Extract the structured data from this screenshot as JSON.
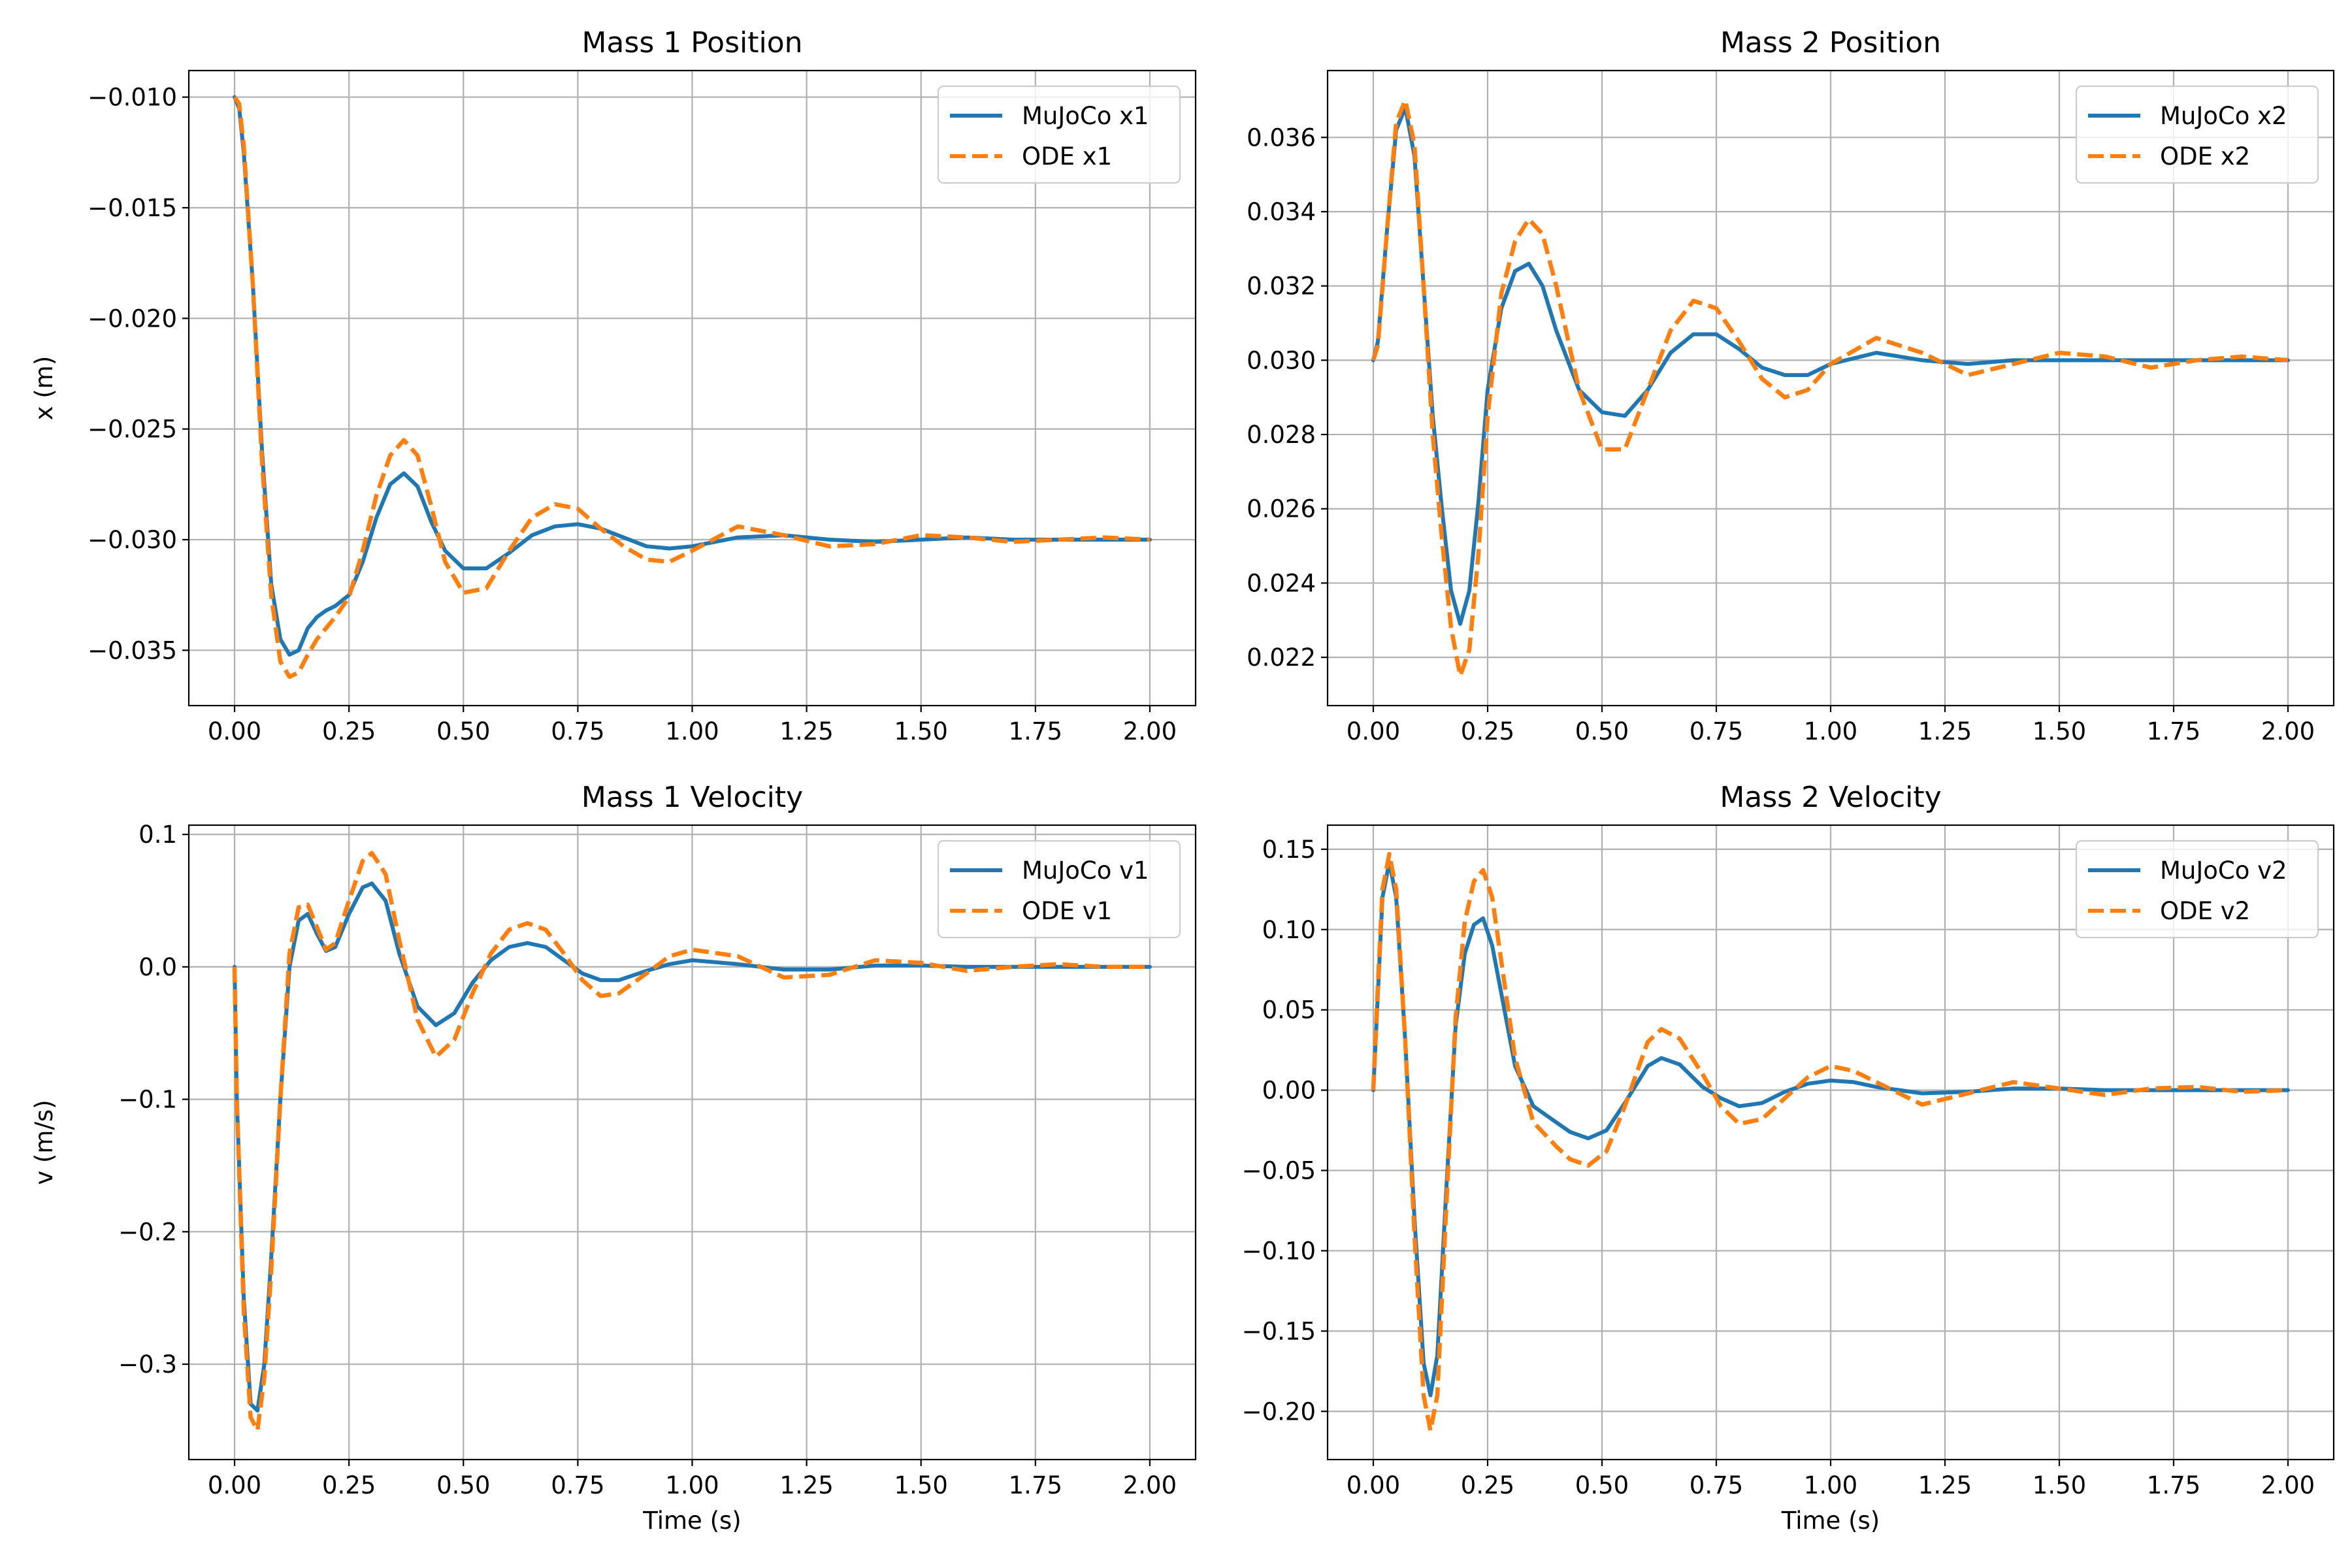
{
  "figure": {
    "title": ""
  },
  "colors": {
    "mujoco": "#1f77b4",
    "ode": "#ff7f0e",
    "grid": "#b0b0b0"
  },
  "chart_data": [
    {
      "type": "line",
      "title": "Mass 1 Position",
      "xlabel": "",
      "ylabel": "x (m)",
      "xlim": [
        -0.1,
        2.1
      ],
      "ylim": [
        -0.0375,
        -0.0088
      ],
      "xticks": [
        0,
        0.25,
        0.5,
        0.75,
        1.0,
        1.25,
        1.5,
        1.75,
        2.0
      ],
      "xtick_labels": [
        "0.00",
        "0.25",
        "0.50",
        "0.75",
        "1.00",
        "1.25",
        "1.50",
        "1.75",
        "2.00"
      ],
      "yticks": [
        -0.035,
        -0.03,
        -0.025,
        -0.02,
        -0.015,
        -0.01
      ],
      "ytick_labels": [
        "−0.035",
        "−0.030",
        "−0.025",
        "−0.020",
        "−0.015",
        "−0.010"
      ],
      "grid": true,
      "legend": "top-right",
      "series": [
        {
          "name": "MuJoCo x1",
          "style": "solid",
          "x": [
            0,
            0.01,
            0.02,
            0.04,
            0.06,
            0.08,
            0.1,
            0.12,
            0.14,
            0.16,
            0.18,
            0.2,
            0.22,
            0.25,
            0.28,
            0.31,
            0.34,
            0.37,
            0.4,
            0.43,
            0.46,
            0.5,
            0.55,
            0.6,
            0.65,
            0.7,
            0.75,
            0.8,
            0.85,
            0.9,
            0.95,
            1.0,
            1.1,
            1.2,
            1.3,
            1.4,
            1.5,
            1.6,
            1.7,
            1.8,
            1.9,
            2.0
          ],
          "y": [
            -0.01,
            -0.0105,
            -0.0125,
            -0.0185,
            -0.026,
            -0.032,
            -0.0345,
            -0.0352,
            -0.035,
            -0.034,
            -0.0335,
            -0.0332,
            -0.033,
            -0.0325,
            -0.031,
            -0.029,
            -0.0275,
            -0.027,
            -0.0276,
            -0.0292,
            -0.0305,
            -0.0313,
            -0.0313,
            -0.0306,
            -0.0298,
            -0.0294,
            -0.0293,
            -0.0295,
            -0.0299,
            -0.0303,
            -0.0304,
            -0.0303,
            -0.0299,
            -0.0298,
            -0.03,
            -0.0301,
            -0.03,
            -0.0299,
            -0.03,
            -0.03,
            -0.03,
            -0.03
          ]
        },
        {
          "name": "ODE x1",
          "style": "dashed",
          "x": [
            0,
            0.01,
            0.02,
            0.04,
            0.06,
            0.08,
            0.1,
            0.12,
            0.14,
            0.16,
            0.18,
            0.2,
            0.22,
            0.25,
            0.28,
            0.31,
            0.34,
            0.37,
            0.4,
            0.43,
            0.46,
            0.5,
            0.55,
            0.6,
            0.65,
            0.7,
            0.75,
            0.8,
            0.85,
            0.9,
            0.95,
            1.0,
            1.1,
            1.2,
            1.3,
            1.4,
            1.5,
            1.6,
            1.7,
            1.8,
            1.9,
            2.0
          ],
          "y": [
            -0.01,
            -0.0103,
            -0.0122,
            -0.0185,
            -0.0265,
            -0.0325,
            -0.0355,
            -0.0362,
            -0.036,
            -0.0352,
            -0.0345,
            -0.034,
            -0.0335,
            -0.0326,
            -0.0305,
            -0.028,
            -0.0262,
            -0.0255,
            -0.0262,
            -0.0285,
            -0.031,
            -0.0324,
            -0.0322,
            -0.0305,
            -0.029,
            -0.0284,
            -0.0286,
            -0.0295,
            -0.0303,
            -0.0309,
            -0.031,
            -0.0305,
            -0.0294,
            -0.0298,
            -0.0303,
            -0.0302,
            -0.0298,
            -0.0299,
            -0.0301,
            -0.03,
            -0.0299,
            -0.03
          ]
        }
      ]
    },
    {
      "type": "line",
      "title": "Mass 2 Position",
      "xlabel": "",
      "ylabel": "",
      "xlim": [
        -0.1,
        2.1
      ],
      "ylim": [
        0.0207,
        0.0378
      ],
      "xticks": [
        0,
        0.25,
        0.5,
        0.75,
        1.0,
        1.25,
        1.5,
        1.75,
        2.0
      ],
      "xtick_labels": [
        "0.00",
        "0.25",
        "0.50",
        "0.75",
        "1.00",
        "1.25",
        "1.50",
        "1.75",
        "2.00"
      ],
      "yticks": [
        0.022,
        0.024,
        0.026,
        0.028,
        0.03,
        0.032,
        0.034,
        0.036
      ],
      "ytick_labels": [
        "0.022",
        "0.024",
        "0.026",
        "0.028",
        "0.030",
        "0.032",
        "0.034",
        "0.036"
      ],
      "grid": true,
      "legend": "top-right",
      "series": [
        {
          "name": "MuJoCo x2",
          "style": "solid",
          "x": [
            0,
            0.01,
            0.03,
            0.05,
            0.07,
            0.09,
            0.11,
            0.13,
            0.15,
            0.17,
            0.19,
            0.21,
            0.23,
            0.25,
            0.28,
            0.31,
            0.34,
            0.37,
            0.4,
            0.45,
            0.5,
            0.55,
            0.6,
            0.65,
            0.7,
            0.75,
            0.8,
            0.85,
            0.9,
            0.95,
            1.0,
            1.1,
            1.2,
            1.3,
            1.4,
            1.5,
            1.6,
            1.7,
            1.8,
            1.9,
            2.0
          ],
          "y": [
            0.03,
            0.0305,
            0.0335,
            0.0362,
            0.0368,
            0.0355,
            0.032,
            0.0285,
            0.026,
            0.0238,
            0.0229,
            0.0238,
            0.0262,
            0.0292,
            0.0314,
            0.0324,
            0.0326,
            0.032,
            0.0308,
            0.0292,
            0.0286,
            0.0285,
            0.0292,
            0.0302,
            0.0307,
            0.0307,
            0.0303,
            0.0298,
            0.0296,
            0.0296,
            0.0299,
            0.0302,
            0.03,
            0.0299,
            0.03,
            0.03,
            0.03,
            0.03,
            0.03,
            0.03,
            0.03
          ]
        },
        {
          "name": "ODE x2",
          "style": "dashed",
          "x": [
            0,
            0.01,
            0.03,
            0.05,
            0.07,
            0.09,
            0.11,
            0.13,
            0.15,
            0.17,
            0.19,
            0.21,
            0.23,
            0.25,
            0.28,
            0.31,
            0.34,
            0.37,
            0.4,
            0.45,
            0.5,
            0.55,
            0.6,
            0.65,
            0.7,
            0.75,
            0.8,
            0.85,
            0.9,
            0.95,
            1.0,
            1.1,
            1.2,
            1.3,
            1.4,
            1.5,
            1.6,
            1.7,
            1.8,
            1.9,
            2.0
          ],
          "y": [
            0.03,
            0.0304,
            0.0335,
            0.0364,
            0.037,
            0.0358,
            0.032,
            0.028,
            0.0252,
            0.0228,
            0.0215,
            0.0222,
            0.0248,
            0.0285,
            0.0318,
            0.0332,
            0.0338,
            0.0334,
            0.032,
            0.0292,
            0.0276,
            0.0276,
            0.0292,
            0.0308,
            0.0316,
            0.0314,
            0.0305,
            0.0295,
            0.029,
            0.0292,
            0.0299,
            0.0306,
            0.0302,
            0.0296,
            0.0299,
            0.0302,
            0.0301,
            0.0298,
            0.03,
            0.0301,
            0.03
          ]
        }
      ]
    },
    {
      "type": "line",
      "title": "Mass 1 Velocity",
      "xlabel": "Time (s)",
      "ylabel": "v (m/s)",
      "xlim": [
        -0.1,
        2.1
      ],
      "ylim": [
        -0.372,
        0.107
      ],
      "xticks": [
        0,
        0.25,
        0.5,
        0.75,
        1.0,
        1.25,
        1.5,
        1.75,
        2.0
      ],
      "xtick_labels": [
        "0.00",
        "0.25",
        "0.50",
        "0.75",
        "1.00",
        "1.25",
        "1.50",
        "1.75",
        "2.00"
      ],
      "yticks": [
        -0.3,
        -0.2,
        -0.1,
        0.0,
        0.1
      ],
      "ytick_labels": [
        "−0.3",
        "−0.2",
        "−0.1",
        "0.0",
        "0.1"
      ],
      "grid": true,
      "legend": "top-right",
      "series": [
        {
          "name": "MuJoCo v1",
          "style": "solid",
          "x": [
            0,
            0.005,
            0.02,
            0.035,
            0.05,
            0.065,
            0.08,
            0.1,
            0.12,
            0.14,
            0.16,
            0.18,
            0.2,
            0.22,
            0.25,
            0.28,
            0.3,
            0.33,
            0.36,
            0.4,
            0.44,
            0.48,
            0.52,
            0.56,
            0.6,
            0.64,
            0.68,
            0.72,
            0.76,
            0.8,
            0.84,
            0.9,
            0.95,
            1.0,
            1.1,
            1.2,
            1.3,
            1.4,
            1.5,
            1.6,
            1.7,
            1.8,
            1.9,
            2.0
          ],
          "y": [
            0,
            -0.1,
            -0.25,
            -0.33,
            -0.335,
            -0.3,
            -0.22,
            -0.1,
            0.0,
            0.035,
            0.04,
            0.025,
            0.012,
            0.015,
            0.04,
            0.06,
            0.063,
            0.05,
            0.01,
            -0.03,
            -0.044,
            -0.035,
            -0.012,
            0.005,
            0.015,
            0.018,
            0.015,
            0.005,
            -0.005,
            -0.01,
            -0.01,
            -0.003,
            0.002,
            0.005,
            0.002,
            -0.002,
            -0.002,
            0.001,
            0.001,
            0.0,
            0.0,
            0.0,
            0.0,
            0.0
          ]
        },
        {
          "name": "ODE v1",
          "style": "dashed",
          "x": [
            0,
            0.005,
            0.02,
            0.035,
            0.05,
            0.065,
            0.08,
            0.1,
            0.12,
            0.14,
            0.16,
            0.18,
            0.2,
            0.22,
            0.25,
            0.28,
            0.3,
            0.33,
            0.36,
            0.4,
            0.44,
            0.48,
            0.52,
            0.56,
            0.6,
            0.64,
            0.68,
            0.72,
            0.76,
            0.8,
            0.84,
            0.9,
            0.95,
            1.0,
            1.1,
            1.2,
            1.3,
            1.4,
            1.5,
            1.6,
            1.7,
            1.8,
            1.9,
            2.0
          ],
          "y": [
            0,
            -0.1,
            -0.26,
            -0.34,
            -0.35,
            -0.31,
            -0.23,
            -0.1,
            0.01,
            0.045,
            0.047,
            0.03,
            0.013,
            0.018,
            0.05,
            0.08,
            0.086,
            0.07,
            0.02,
            -0.04,
            -0.068,
            -0.055,
            -0.02,
            0.01,
            0.028,
            0.033,
            0.028,
            0.01,
            -0.01,
            -0.022,
            -0.02,
            -0.005,
            0.008,
            0.013,
            0.008,
            -0.008,
            -0.006,
            0.005,
            0.003,
            -0.003,
            0.0,
            0.002,
            0.0,
            0.0
          ]
        }
      ]
    },
    {
      "type": "line",
      "title": "Mass 2 Velocity",
      "xlabel": "Time (s)",
      "ylabel": "",
      "xlim": [
        -0.1,
        2.1
      ],
      "ylim": [
        -0.23,
        0.165
      ],
      "xticks": [
        0,
        0.25,
        0.5,
        0.75,
        1.0,
        1.25,
        1.5,
        1.75,
        2.0
      ],
      "xtick_labels": [
        "0.00",
        "0.25",
        "0.50",
        "0.75",
        "1.00",
        "1.25",
        "1.50",
        "1.75",
        "2.00"
      ],
      "yticks": [
        -0.2,
        -0.15,
        -0.1,
        -0.05,
        0.0,
        0.05,
        0.1,
        0.15
      ],
      "ytick_labels": [
        "−0.20",
        "−0.15",
        "−0.10",
        "−0.05",
        "0.00",
        "0.05",
        "0.10",
        "0.15"
      ],
      "grid": true,
      "legend": "top-right",
      "series": [
        {
          "name": "MuJoCo v2",
          "style": "solid",
          "x": [
            0,
            0.01,
            0.02,
            0.035,
            0.05,
            0.07,
            0.09,
            0.11,
            0.125,
            0.14,
            0.16,
            0.18,
            0.2,
            0.22,
            0.24,
            0.26,
            0.28,
            0.31,
            0.35,
            0.4,
            0.43,
            0.47,
            0.51,
            0.55,
            0.6,
            0.63,
            0.67,
            0.72,
            0.76,
            0.8,
            0.85,
            0.9,
            0.95,
            1.0,
            1.05,
            1.1,
            1.2,
            1.3,
            1.4,
            1.5,
            1.6,
            1.7,
            1.8,
            1.9,
            2.0
          ],
          "y": [
            0,
            0.06,
            0.12,
            0.142,
            0.12,
            0.03,
            -0.08,
            -0.17,
            -0.19,
            -0.165,
            -0.06,
            0.04,
            0.085,
            0.103,
            0.107,
            0.09,
            0.06,
            0.015,
            -0.01,
            -0.02,
            -0.026,
            -0.03,
            -0.025,
            -0.008,
            0.015,
            0.02,
            0.016,
            0.002,
            -0.005,
            -0.01,
            -0.008,
            -0.001,
            0.004,
            0.006,
            0.005,
            0.002,
            -0.002,
            -0.001,
            0.001,
            0.001,
            0.0,
            0.0,
            0.0,
            0.0,
            0.0
          ]
        },
        {
          "name": "ODE v2",
          "style": "dashed",
          "x": [
            0,
            0.01,
            0.02,
            0.035,
            0.05,
            0.07,
            0.09,
            0.11,
            0.125,
            0.14,
            0.16,
            0.18,
            0.2,
            0.22,
            0.24,
            0.26,
            0.28,
            0.31,
            0.35,
            0.4,
            0.43,
            0.47,
            0.51,
            0.55,
            0.6,
            0.63,
            0.67,
            0.72,
            0.76,
            0.8,
            0.85,
            0.9,
            0.95,
            1.0,
            1.05,
            1.1,
            1.2,
            1.3,
            1.4,
            1.5,
            1.6,
            1.7,
            1.8,
            1.9,
            2.0
          ],
          "y": [
            0,
            0.065,
            0.125,
            0.147,
            0.125,
            0.03,
            -0.09,
            -0.19,
            -0.212,
            -0.19,
            -0.07,
            0.045,
            0.105,
            0.13,
            0.137,
            0.12,
            0.08,
            0.02,
            -0.02,
            -0.035,
            -0.043,
            -0.047,
            -0.038,
            -0.01,
            0.03,
            0.038,
            0.032,
            0.01,
            -0.01,
            -0.021,
            -0.018,
            -0.005,
            0.008,
            0.015,
            0.012,
            0.005,
            -0.009,
            -0.002,
            0.005,
            0.001,
            -0.003,
            0.001,
            0.002,
            -0.001,
            0.0
          ]
        }
      ]
    }
  ]
}
